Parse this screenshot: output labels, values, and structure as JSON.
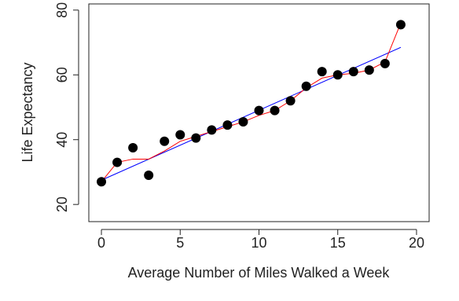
{
  "chart_data": {
    "type": "scatter",
    "x_label": "Average Number of Miles Walked a Week",
    "y_label": "Life Expectancy",
    "xlim": [
      -0.8,
      20.8
    ],
    "ylim": [
      14.7,
      81.9
    ],
    "xticks": [
      0,
      5,
      10,
      15,
      20
    ],
    "yticks": [
      20,
      40,
      60,
      80
    ],
    "series": [
      {
        "type": "line",
        "color": "#0000ff",
        "x": [
          0,
          19
        ],
        "values": [
          27.5,
          68.5
        ]
      },
      {
        "type": "line",
        "color": "#ff0000",
        "x": [
          0,
          1,
          2,
          3,
          4,
          5,
          6,
          7,
          8,
          9,
          10,
          11,
          12,
          13,
          14,
          15,
          16,
          17,
          18,
          19
        ],
        "values": [
          27,
          33,
          34,
          34,
          36.5,
          39.5,
          41,
          42.5,
          44,
          45.5,
          47.5,
          49,
          52,
          56,
          59,
          60,
          60.5,
          61.5,
          64,
          76
        ]
      },
      {
        "type": "scatter",
        "color": "#000000",
        "x": [
          0,
          1,
          2,
          3,
          4,
          5,
          6,
          7,
          8,
          9,
          10,
          11,
          12,
          13,
          14,
          15,
          16,
          17,
          18,
          19
        ],
        "values": [
          27,
          33,
          37.5,
          29,
          39.5,
          41.5,
          40.5,
          43,
          44.5,
          45.5,
          49,
          49,
          52,
          56.5,
          61,
          60,
          61,
          61.5,
          63.5,
          75.5
        ]
      }
    ]
  }
}
